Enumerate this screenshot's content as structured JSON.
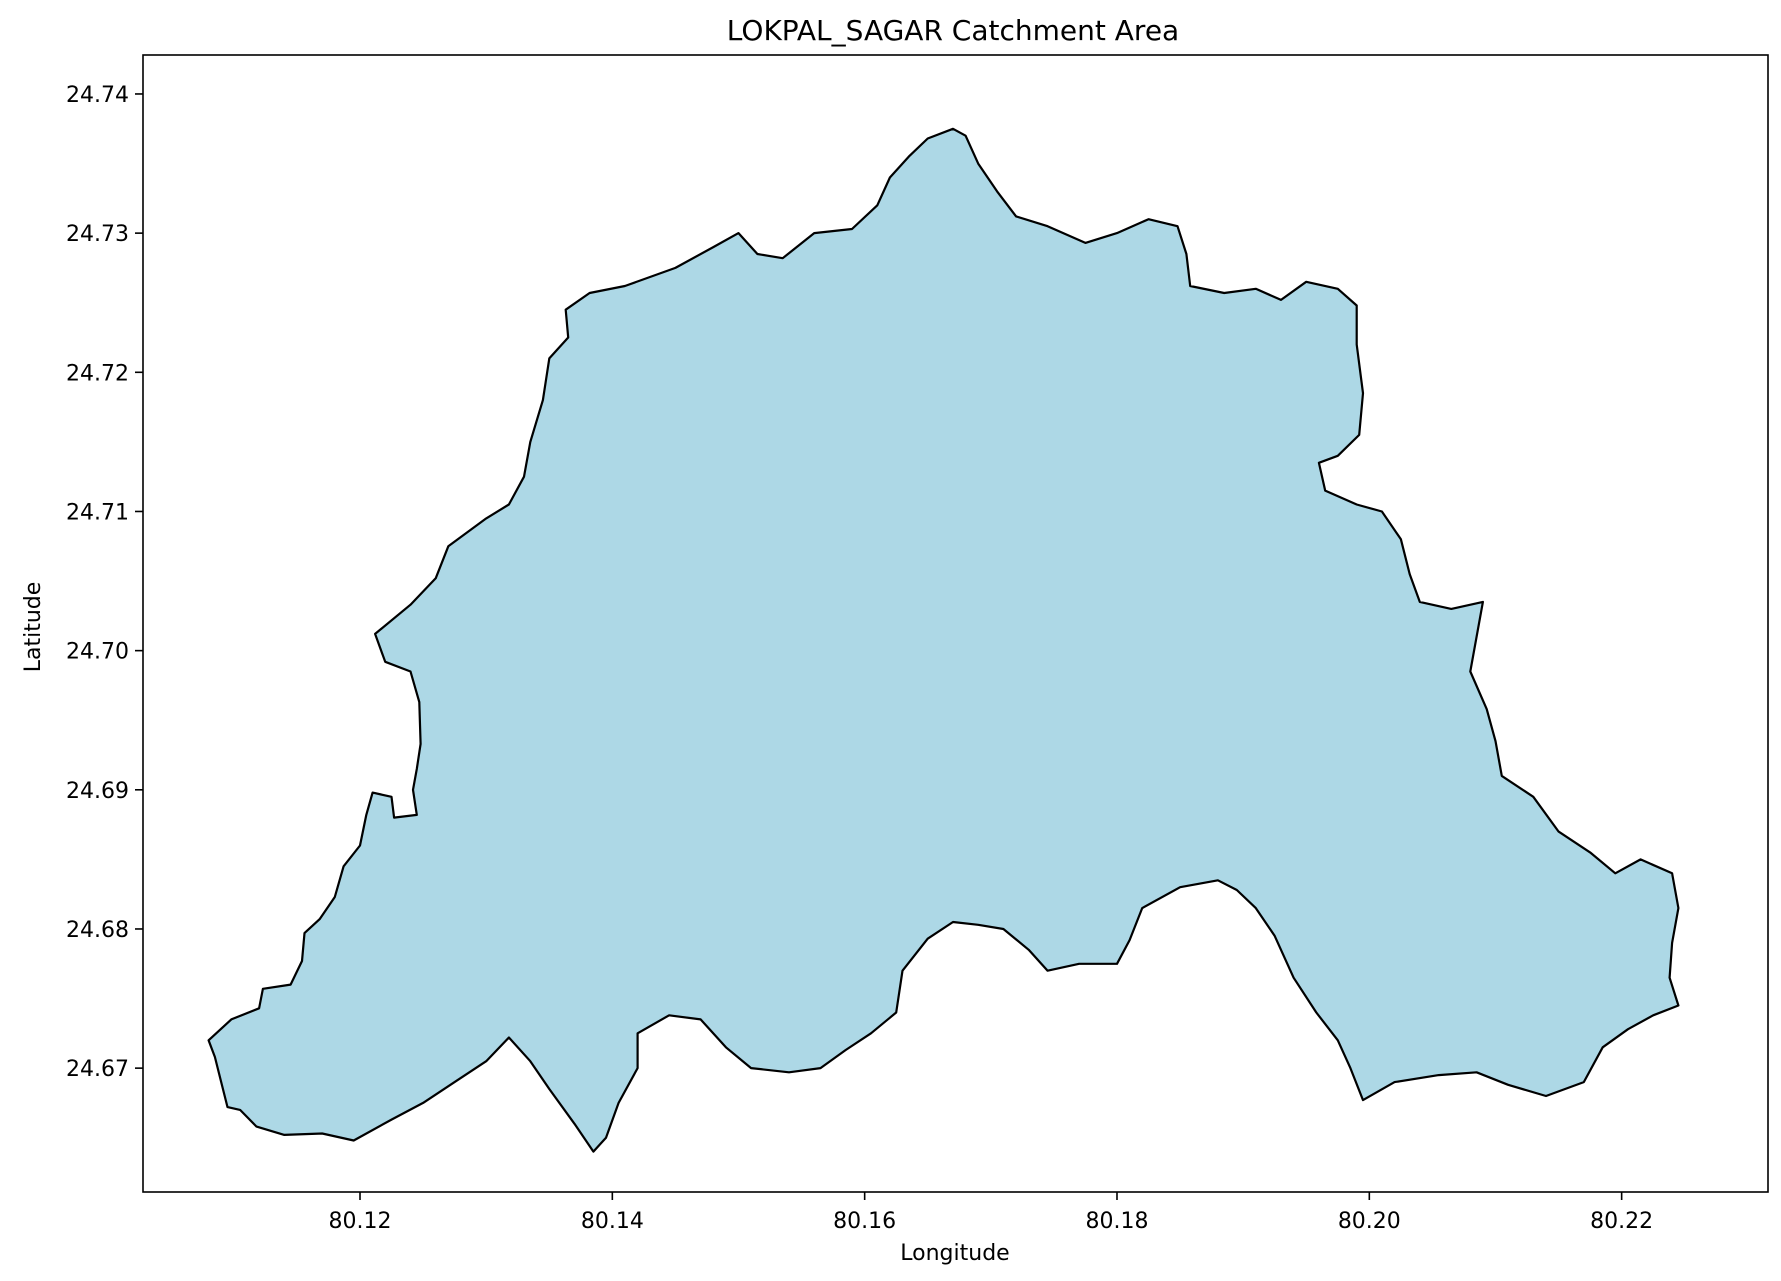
{
  "chart_data": {
    "type": "area",
    "title": "LOKPAL_SAGAR Catchment Area",
    "xlabel": "Longitude",
    "ylabel": "Latitude",
    "xlim": [
      80.1028,
      80.2316
    ],
    "ylim": [
      24.6611,
      24.7428
    ],
    "x_ticks": [
      "80.12",
      "80.14",
      "80.16",
      "80.18",
      "80.20",
      "80.22"
    ],
    "x_tick_values": [
      80.12,
      80.14,
      80.16,
      80.18,
      80.2,
      80.22
    ],
    "y_ticks": [
      "24.67",
      "24.68",
      "24.69",
      "24.70",
      "24.71",
      "24.72",
      "24.73",
      "24.74"
    ],
    "y_tick_values": [
      24.67,
      24.68,
      24.69,
      24.7,
      24.71,
      24.72,
      24.73,
      24.74
    ],
    "grid": false,
    "colors": {
      "fill": "#add8e6",
      "edge": "#000000"
    },
    "series": [
      {
        "points": [
          [
            80.108,
            24.672
          ],
          [
            80.1098,
            24.6735
          ],
          [
            80.112,
            24.6743
          ],
          [
            80.1123,
            24.6757
          ],
          [
            80.1145,
            24.676
          ],
          [
            80.1154,
            24.6777
          ],
          [
            80.1156,
            24.6797
          ],
          [
            80.1168,
            24.6807
          ],
          [
            80.118,
            24.6823
          ],
          [
            80.1187,
            24.6845
          ],
          [
            80.12,
            24.686
          ],
          [
            80.1205,
            24.6882
          ],
          [
            80.121,
            24.6898
          ],
          [
            80.1225,
            24.6895
          ],
          [
            80.1227,
            24.688
          ],
          [
            80.1245,
            24.6882
          ],
          [
            80.1242,
            24.69
          ],
          [
            80.1245,
            24.6915
          ],
          [
            80.1248,
            24.6933
          ],
          [
            80.1247,
            24.6963
          ],
          [
            80.124,
            24.6985
          ],
          [
            80.122,
            24.6992
          ],
          [
            80.1212,
            24.7012
          ],
          [
            80.124,
            24.7033
          ],
          [
            80.126,
            24.7052
          ],
          [
            80.127,
            24.7075
          ],
          [
            80.13,
            24.7095
          ],
          [
            80.1318,
            24.7105
          ],
          [
            80.133,
            24.7125
          ],
          [
            80.1335,
            24.715
          ],
          [
            80.1345,
            24.718
          ],
          [
            80.135,
            24.721
          ],
          [
            80.1365,
            24.7225
          ],
          [
            80.1363,
            24.7245
          ],
          [
            80.1382,
            24.7257
          ],
          [
            80.141,
            24.7262
          ],
          [
            80.145,
            24.7275
          ],
          [
            80.148,
            24.729
          ],
          [
            80.15,
            24.73
          ],
          [
            80.1515,
            24.7285
          ],
          [
            80.1535,
            24.7282
          ],
          [
            80.156,
            24.73
          ],
          [
            80.159,
            24.7303
          ],
          [
            80.161,
            24.732
          ],
          [
            80.162,
            24.734
          ],
          [
            80.1635,
            24.7355
          ],
          [
            80.165,
            24.7368
          ],
          [
            80.167,
            24.7375
          ],
          [
            80.168,
            24.737
          ],
          [
            80.169,
            24.735
          ],
          [
            80.1705,
            24.733
          ],
          [
            80.172,
            24.7312
          ],
          [
            80.1745,
            24.7305
          ],
          [
            80.1775,
            24.7293
          ],
          [
            80.18,
            24.73
          ],
          [
            80.1825,
            24.731
          ],
          [
            80.1848,
            24.7305
          ],
          [
            80.1855,
            24.7285
          ],
          [
            80.1858,
            24.7262
          ],
          [
            80.1885,
            24.7257
          ],
          [
            80.191,
            24.726
          ],
          [
            80.193,
            24.7252
          ],
          [
            80.195,
            24.7265
          ],
          [
            80.1975,
            24.726
          ],
          [
            80.199,
            24.7248
          ],
          [
            80.199,
            24.722
          ],
          [
            80.1995,
            24.7185
          ],
          [
            80.1992,
            24.7155
          ],
          [
            80.1975,
            24.714
          ],
          [
            80.196,
            24.7135
          ],
          [
            80.1965,
            24.7115
          ],
          [
            80.199,
            24.7105
          ],
          [
            80.201,
            24.71
          ],
          [
            80.2025,
            24.708
          ],
          [
            80.2032,
            24.7055
          ],
          [
            80.204,
            24.7035
          ],
          [
            80.2065,
            24.703
          ],
          [
            80.209,
            24.7035
          ],
          [
            80.2085,
            24.701
          ],
          [
            80.208,
            24.6985
          ],
          [
            80.2093,
            24.6958
          ],
          [
            80.21,
            24.6935
          ],
          [
            80.2105,
            24.691
          ],
          [
            80.213,
            24.6895
          ],
          [
            80.215,
            24.687
          ],
          [
            80.2175,
            24.6855
          ],
          [
            80.2195,
            24.684
          ],
          [
            80.2215,
            24.685
          ],
          [
            80.224,
            24.684
          ],
          [
            80.2245,
            24.6815
          ],
          [
            80.224,
            24.679
          ],
          [
            80.2238,
            24.6765
          ],
          [
            80.2245,
            24.6745
          ],
          [
            80.2225,
            24.6738
          ],
          [
            80.2205,
            24.6728
          ],
          [
            80.2185,
            24.6715
          ],
          [
            80.217,
            24.669
          ],
          [
            80.214,
            24.668
          ],
          [
            80.211,
            24.6688
          ],
          [
            80.2085,
            24.6697
          ],
          [
            80.2055,
            24.6695
          ],
          [
            80.202,
            24.669
          ],
          [
            80.1995,
            24.6677
          ],
          [
            80.1985,
            24.67
          ],
          [
            80.1975,
            24.672
          ],
          [
            80.1958,
            24.674
          ],
          [
            80.194,
            24.6765
          ],
          [
            80.1925,
            24.6795
          ],
          [
            80.191,
            24.6815
          ],
          [
            80.1895,
            24.6828
          ],
          [
            80.188,
            24.6835
          ],
          [
            80.185,
            24.683
          ],
          [
            80.182,
            24.6815
          ],
          [
            80.181,
            24.6792
          ],
          [
            80.18,
            24.6775
          ],
          [
            80.177,
            24.6775
          ],
          [
            80.1745,
            24.677
          ],
          [
            80.173,
            24.6785
          ],
          [
            80.171,
            24.68
          ],
          [
            80.169,
            24.6803
          ],
          [
            80.167,
            24.6805
          ],
          [
            80.165,
            24.6793
          ],
          [
            80.163,
            24.677
          ],
          [
            80.1625,
            24.674
          ],
          [
            80.1605,
            24.6725
          ],
          [
            80.1585,
            24.6713
          ],
          [
            80.1565,
            24.67
          ],
          [
            80.154,
            24.6697
          ],
          [
            80.151,
            24.67
          ],
          [
            80.149,
            24.6715
          ],
          [
            80.147,
            24.6735
          ],
          [
            80.1445,
            24.6738
          ],
          [
            80.142,
            24.6725
          ],
          [
            80.142,
            24.67
          ],
          [
            80.1405,
            24.6675
          ],
          [
            80.1395,
            24.665
          ],
          [
            80.1385,
            24.664
          ],
          [
            80.137,
            24.666
          ],
          [
            80.135,
            24.6685
          ],
          [
            80.1335,
            24.6705
          ],
          [
            80.1318,
            24.6722
          ],
          [
            80.13,
            24.6705
          ],
          [
            80.1275,
            24.669
          ],
          [
            80.125,
            24.6675
          ],
          [
            80.1225,
            24.6663
          ],
          [
            80.1195,
            24.6648
          ],
          [
            80.117,
            24.6653
          ],
          [
            80.114,
            24.6652
          ],
          [
            80.1118,
            24.6658
          ],
          [
            80.1105,
            24.667
          ],
          [
            80.1095,
            24.6672
          ],
          [
            80.109,
            24.669
          ],
          [
            80.1085,
            24.6708
          ],
          [
            80.108,
            24.672
          ]
        ]
      }
    ]
  }
}
